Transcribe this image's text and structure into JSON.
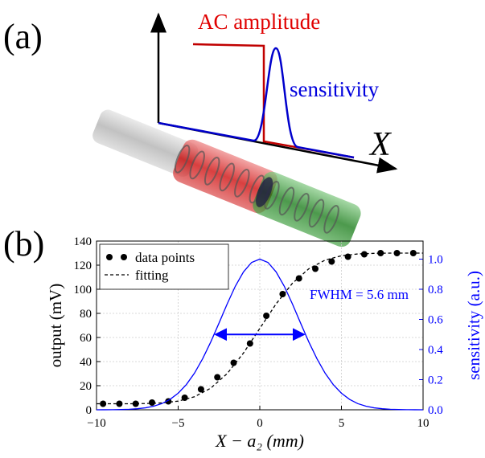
{
  "diagram": {
    "panel_label": "(a)",
    "amplitude_label": "AC amplitude",
    "sensitivity_label": "sensitivity",
    "axis_label": "X"
  },
  "chart_data": {
    "type": "line",
    "panel_label": "(b)",
    "x_label": "X − a₂ (mm)",
    "y_label": "output (mV)",
    "y2_label": "sensitivity (a.u.)",
    "xlim": [
      -10,
      10
    ],
    "xticks": [
      {
        "value": -10,
        "label": "−10"
      },
      {
        "value": -5,
        "label": "−5"
      },
      0,
      5,
      10
    ],
    "ylim": [
      0,
      140
    ],
    "yticks": [
      0,
      20,
      40,
      60,
      80,
      100,
      120,
      140
    ],
    "y2lim": [
      0,
      1.12
    ],
    "y2ticks": [
      {
        "value": 0,
        "label": "0.0"
      },
      0.2,
      0.4,
      0.6,
      0.8,
      {
        "value": 1,
        "label": "1.0"
      }
    ],
    "y2color": "#0000ff",
    "grid": true,
    "legend": "upper left",
    "series": [
      {
        "name": "data points",
        "color": "#000000",
        "marker": "circle",
        "x": [
          -9.6,
          -8.6,
          -7.6,
          -6.6,
          -5.6,
          -4.6,
          -3.6,
          -2.6,
          -1.6,
          -0.6,
          0.4,
          1.4,
          2.4,
          3.4,
          4.4,
          5.4,
          6.4,
          7.4,
          8.4,
          9.4
        ],
        "values": [
          5,
          5,
          5,
          6,
          7,
          10,
          17,
          27,
          39,
          55,
          78,
          96,
          109,
          117,
          123,
          127,
          129,
          130,
          130,
          130
        ]
      },
      {
        "name": "fitting",
        "color": "#000000",
        "dash": "dashed",
        "x": [
          -10,
          -9,
          -8,
          -7,
          -6,
          -5,
          -4,
          -3,
          -2,
          -1,
          0,
          1,
          2,
          3,
          4,
          5,
          6,
          7,
          8,
          9,
          10
        ],
        "values": [
          5,
          5,
          5,
          5.2,
          5.7,
          7.2,
          10.8,
          18,
          30,
          47.1,
          67.5,
          87.9,
          105,
          117,
          124.2,
          127.8,
          129.3,
          129.8,
          130,
          130,
          130
        ]
      },
      {
        "color": "#0000ff",
        "axis": "y2",
        "x": [
          -10,
          -9.5,
          -9,
          -8.5,
          -8,
          -7.5,
          -7,
          -6.5,
          -6,
          -5.5,
          -5,
          -4.5,
          -4,
          -3.5,
          -3,
          -2.5,
          -2,
          -1.5,
          -1,
          -0.5,
          0,
          0.5,
          1,
          1.5,
          2,
          2.5,
          3,
          3.5,
          4,
          4.5,
          5,
          5.5,
          6,
          6.5,
          7,
          7.5,
          8,
          8.5,
          9,
          9.5,
          10
        ],
        "values": [
          0.0001,
          0.0003,
          0.0008,
          0.0017,
          0.0035,
          0.007,
          0.013,
          0.024,
          0.041,
          0.069,
          0.11,
          0.167,
          0.243,
          0.339,
          0.451,
          0.575,
          0.702,
          0.82,
          0.915,
          0.978,
          1,
          0.978,
          0.915,
          0.82,
          0.702,
          0.575,
          0.451,
          0.339,
          0.243,
          0.167,
          0.11,
          0.069,
          0.041,
          0.024,
          0.013,
          0.007,
          0.0035,
          0.0017,
          0.0008,
          0.0003,
          0.0001
        ]
      }
    ],
    "fwhm": {
      "text": "FWHM = 5.6 mm",
      "x": [
        -2.8,
        2.8
      ],
      "y2": 0.5
    }
  }
}
